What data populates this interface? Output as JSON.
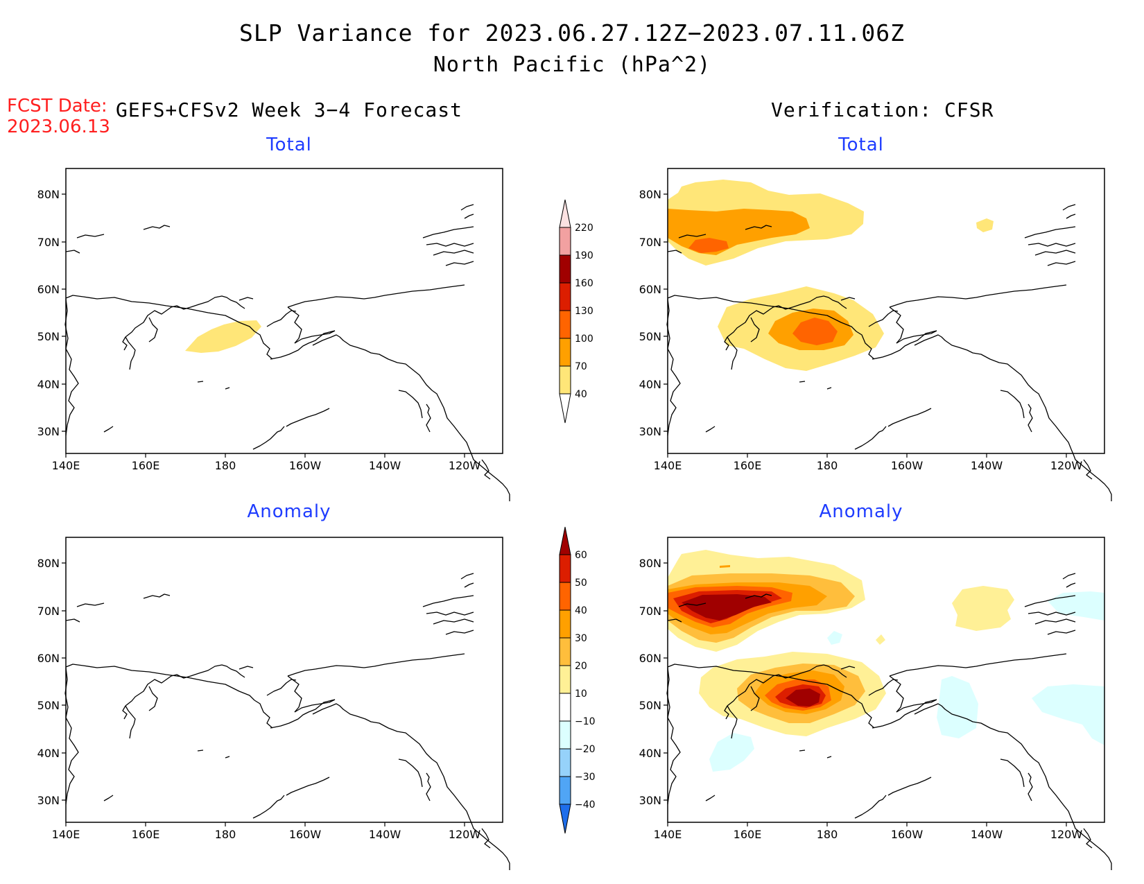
{
  "title": {
    "line1": "SLP Variance for 2023.06.27.12Z−2023.07.11.06Z",
    "line2": "North Pacific (hPa^2)"
  },
  "fcst": {
    "label": "FCST Date:",
    "date": "2023.06.13"
  },
  "headers": {
    "left": "GEFS+CFSv2 Week 3−4 Forecast",
    "right": "Verification: CFSR"
  },
  "panels": {
    "forecast_total": "Total",
    "verification_total": "Total",
    "forecast_anomaly": "Anomaly",
    "verification_anomaly": "Anomaly"
  },
  "axes": {
    "lon_labels": [
      "140E",
      "160E",
      "180",
      "160W",
      "140W",
      "120W"
    ],
    "lat_labels": [
      "80N",
      "70N",
      "60N",
      "50N",
      "40N",
      "30N"
    ]
  },
  "colorbar_total": {
    "labels": [
      "220",
      "190",
      "160",
      "130",
      "100",
      "70",
      "40"
    ],
    "colors": [
      "#fbe2e2",
      "#f2a1a1",
      "#a00000",
      "#dc1e00",
      "#ff6400",
      "#ffa000",
      "#ffe678"
    ]
  },
  "colorbar_anomaly": {
    "labels": [
      "60",
      "50",
      "40",
      "30",
      "20",
      "10",
      "−10",
      "−20",
      "−30",
      "−40"
    ],
    "colors": [
      "#a00000",
      "#dc1e00",
      "#ff6400",
      "#ffa000",
      "#ffbe3c",
      "#fff096",
      "#ffffff",
      "#dcffff",
      "#96d2fa",
      "#50a5f5",
      "#1e6eeb"
    ]
  }
}
